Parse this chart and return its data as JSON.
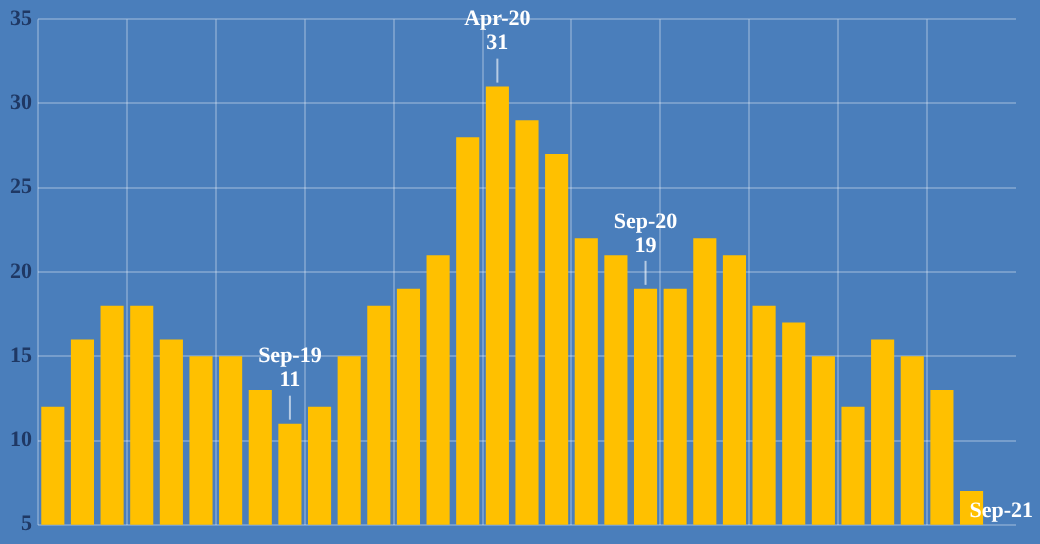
{
  "chart_data": {
    "type": "bar",
    "categories": [
      null,
      null,
      null,
      null,
      null,
      null,
      null,
      null,
      null,
      null,
      null,
      null,
      null,
      null,
      null,
      null,
      null,
      null,
      null,
      null,
      null,
      null,
      null,
      null,
      null,
      null,
      null,
      null,
      null,
      null,
      null,
      null,
      null
    ],
    "values": [
      12,
      16,
      18,
      18,
      16,
      15,
      15,
      13,
      11,
      12,
      15,
      18,
      19,
      21,
      28,
      31,
      29,
      27,
      22,
      21,
      19,
      19,
      22,
      21,
      18,
      17,
      15,
      12,
      16,
      15,
      13,
      7,
      null
    ],
    "value_labels": [
      null,
      null,
      null,
      null,
      null,
      null,
      null,
      null,
      "Sep-19\n11",
      null,
      null,
      null,
      null,
      null,
      null,
      "Apr-20\n31",
      null,
      null,
      null,
      null,
      "Sep-20\n19",
      null,
      null,
      null,
      null,
      null,
      null,
      null,
      null,
      null,
      null,
      null,
      "Sep-21"
    ],
    "color": "#ffc000",
    "ylim": [
      5,
      35
    ],
    "yticks": [
      5,
      10,
      15,
      20,
      25,
      30,
      35
    ],
    "grid": true
  }
}
